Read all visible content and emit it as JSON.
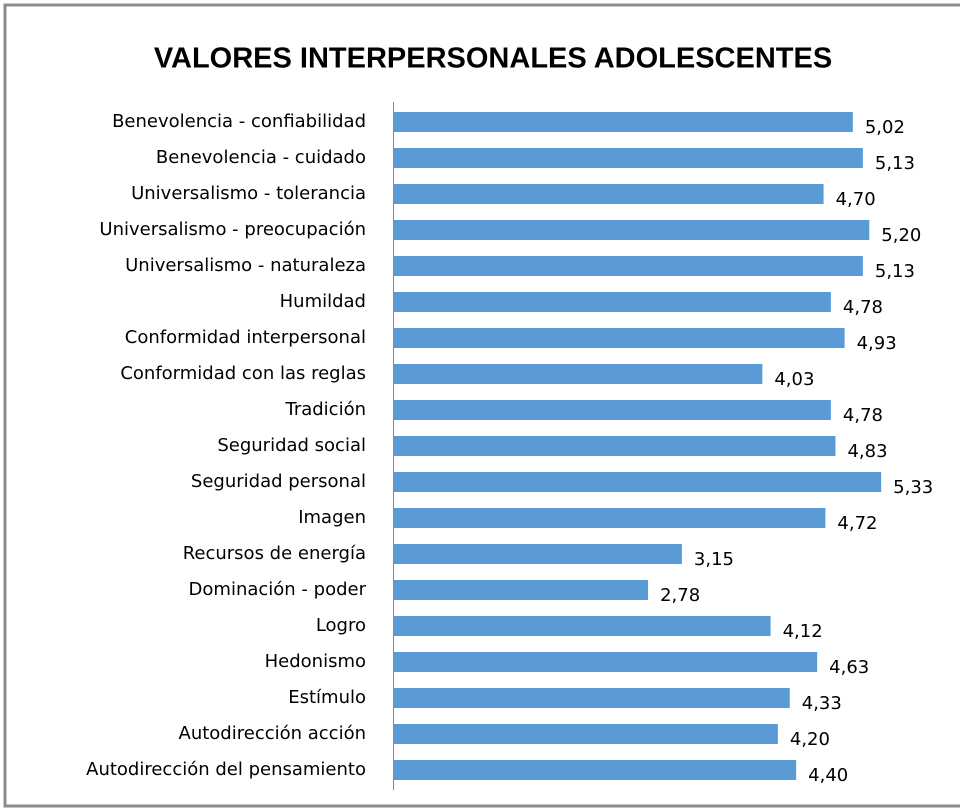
{
  "chart_data": {
    "type": "bar",
    "orientation": "horizontal",
    "title": "VALORES INTERPERSONALES ADOLESCENTES",
    "categories": [
      "Benevolencia - confiabilidad",
      "Benevolencia - cuidado",
      "Universalismo - tolerancia",
      "Universalismo - preocupación",
      "Universalismo - naturaleza",
      "Humildad",
      "Conformidad interpersonal",
      "Conformidad con las reglas",
      "Tradición",
      "Seguridad social",
      "Seguridad personal",
      "Imagen",
      "Recursos de energía",
      "Dominación - poder",
      "Logro",
      "Hedonismo",
      "Estímulo",
      "Autodirección acción",
      "Autodirección del pensamiento"
    ],
    "values": [
      5.02,
      5.13,
      4.7,
      5.2,
      5.13,
      4.78,
      4.93,
      4.03,
      4.78,
      4.83,
      5.33,
      4.72,
      3.15,
      2.78,
      4.12,
      4.63,
      4.33,
      4.2,
      4.4
    ],
    "value_labels": [
      "5,02",
      "5,13",
      "4,70",
      "5,20",
      "5,13",
      "4,78",
      "4,93",
      "4,03",
      "4,78",
      "4,83",
      "5,33",
      "4,72",
      "3,15",
      "2,78",
      "4,12",
      "4,63",
      "4,33",
      "4,20",
      "4,40"
    ],
    "color": "#5b9bd5",
    "xlim": [
      0,
      6
    ]
  }
}
